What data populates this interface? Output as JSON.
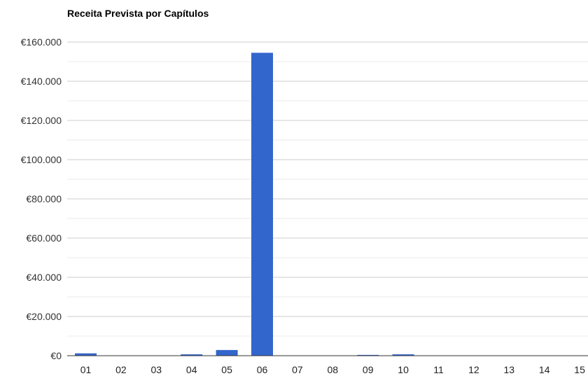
{
  "chart_data": {
    "type": "bar",
    "title": "Receita Prevista por Capítulos",
    "xlabel": "",
    "ylabel": "",
    "categories": [
      "01",
      "02",
      "03",
      "04",
      "05",
      "06",
      "07",
      "08",
      "09",
      "10",
      "11",
      "12",
      "13",
      "14",
      "15"
    ],
    "values": [
      1200,
      0,
      0,
      700,
      2900,
      154500,
      0,
      0,
      400,
      700,
      0,
      0,
      0,
      0,
      0
    ],
    "ylim": [
      0,
      160000
    ],
    "yticks": [
      0,
      20000,
      40000,
      60000,
      80000,
      100000,
      120000,
      140000,
      160000
    ],
    "ytick_labels": [
      "€0",
      "€20.000",
      "€40.000",
      "€60.000",
      "€80.000",
      "€100.000",
      "€120.000",
      "€140.000",
      "€160.000"
    ],
    "minor_gridlines": true,
    "legend": "none",
    "colors": {
      "bar": "#3366cc",
      "major_grid": "#cccccc",
      "minor_grid": "#ebebeb",
      "baseline": "#333333"
    }
  }
}
